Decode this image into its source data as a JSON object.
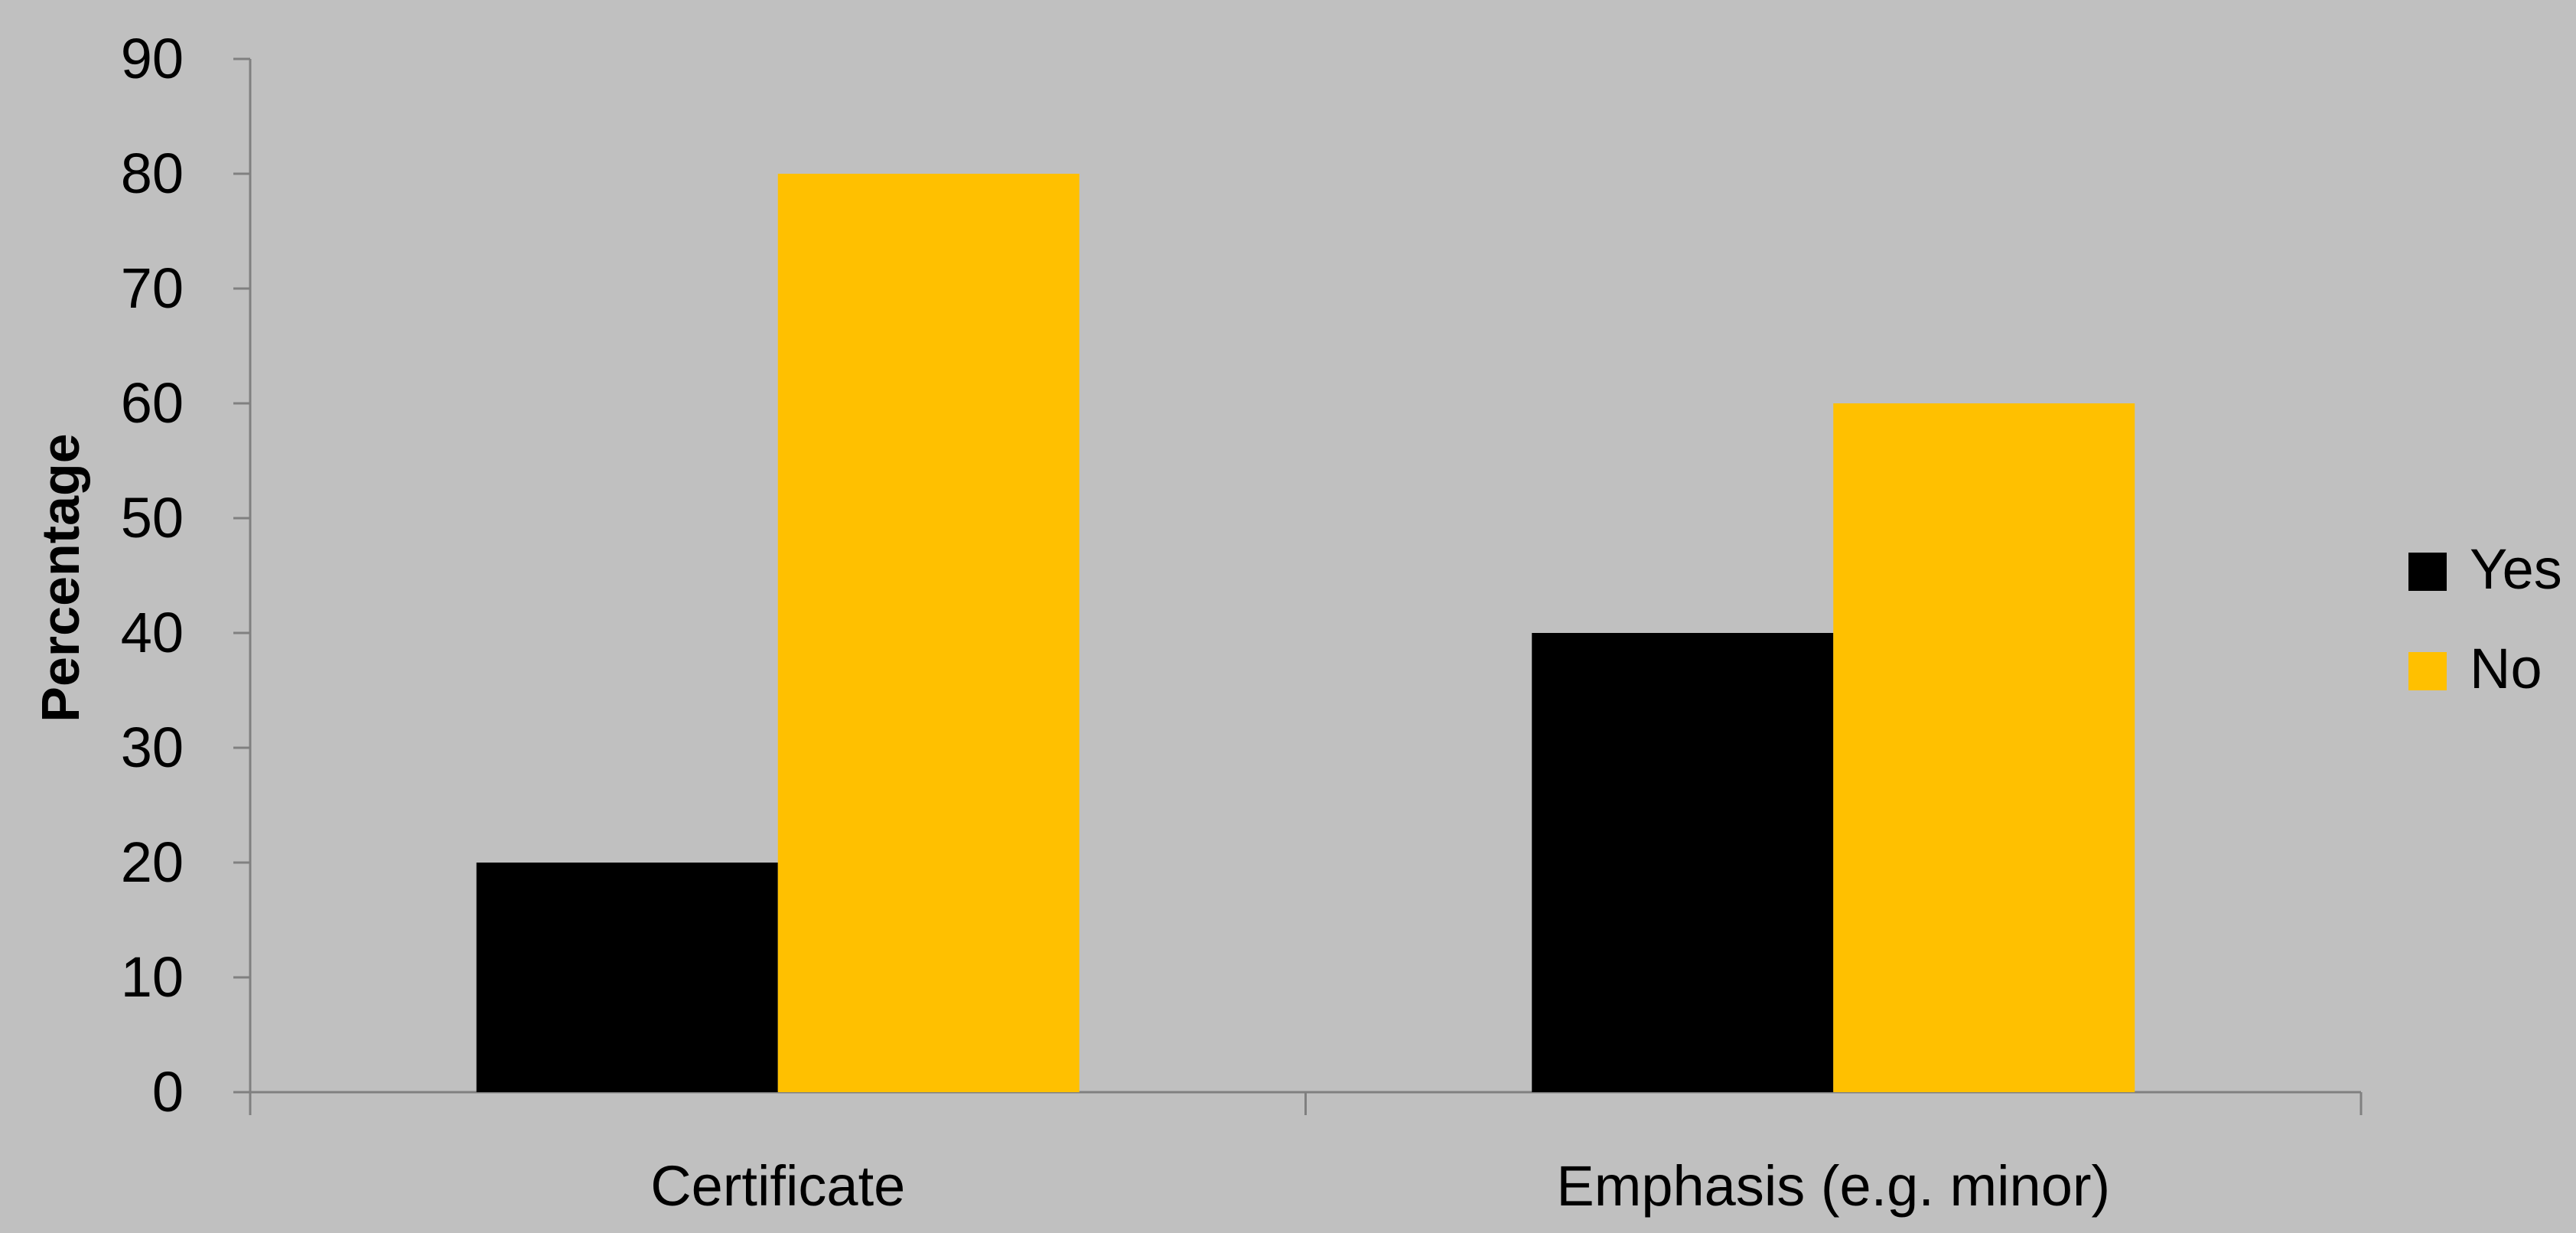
{
  "chart_data": {
    "type": "bar",
    "categories": [
      "Certificate",
      "Emphasis (e.g. minor)"
    ],
    "series": [
      {
        "name": "Yes",
        "values": [
          20,
          40
        ],
        "color": "#000000"
      },
      {
        "name": "No",
        "values": [
          80,
          60
        ],
        "color": "#ffc000"
      }
    ],
    "title": "",
    "xlabel": "",
    "ylabel": "Percentage",
    "ylim": [
      0,
      90
    ],
    "yticks": [
      0,
      10,
      20,
      30,
      40,
      50,
      60,
      70,
      80,
      90
    ],
    "grid": false,
    "legend_position": "right",
    "background_color": "#c0c0c0",
    "axis_color": "#808080"
  }
}
